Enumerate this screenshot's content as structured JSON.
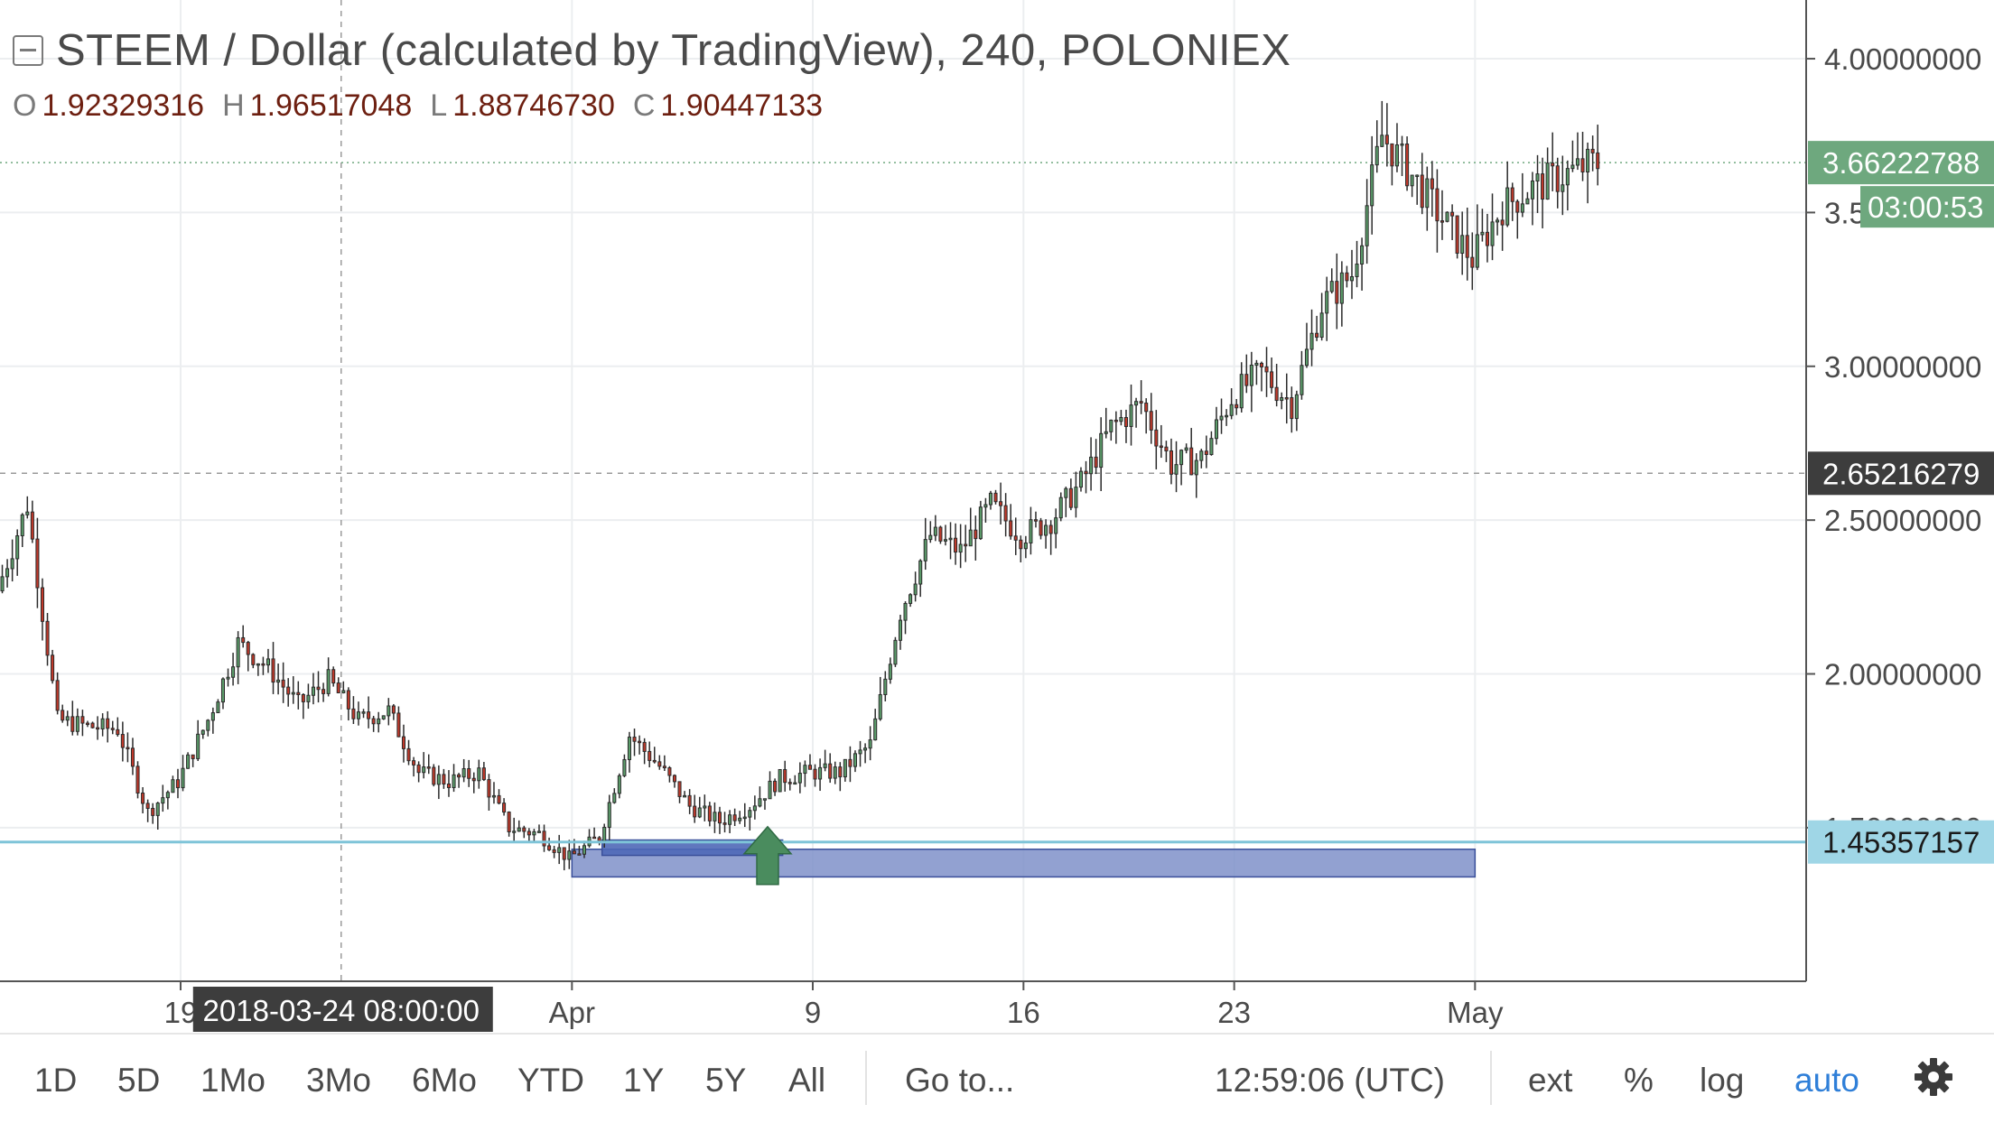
{
  "header": {
    "title": "STEEM / Dollar (calculated by TradingView), 240, POLONIEX",
    "ohlc": [
      {
        "key": "O",
        "value": "1.92329316"
      },
      {
        "key": "H",
        "value": "1.96517048"
      },
      {
        "key": "L",
        "value": "1.88746730"
      },
      {
        "key": "C",
        "value": "1.90447133"
      }
    ]
  },
  "colors": {
    "up": "#5b9c6a",
    "down": "#c0392b",
    "wick": "#2b2b2b",
    "hline": "#7ec4d8",
    "zone": "#7f91c9",
    "zone_dark": "#4f68b7",
    "arrow": "#4a8c5e",
    "last_price_label": "#6ea87e",
    "crosshair_label": "#3d3d3d"
  },
  "chart_data": {
    "type": "candlestick",
    "symbol": "STEEM / Dollar",
    "interval": "240",
    "exchange": "POLONIEX",
    "ylim": [
      1.08,
      4.05
    ],
    "y_ticks": [
      "4.00000000",
      "3.50000000",
      "3.00000000",
      "2.50000000",
      "2.00000000",
      "1.50000000"
    ],
    "y_tick_values": [
      4.0,
      3.5,
      3.0,
      2.5,
      2.0,
      1.5
    ],
    "x_ticks": [
      "19",
      "Apr",
      "9",
      "16",
      "23",
      "May"
    ],
    "x_tick_dates": [
      "2018-03-19",
      "2018-04-01",
      "2018-04-09",
      "2018-04-16",
      "2018-04-23",
      "2018-05-01"
    ],
    "x_start": "2018-03-13",
    "x_end": "2018-05-12",
    "path_points": [
      [
        "2018-03-13",
        2.27
      ],
      [
        "2018-03-14",
        2.55
      ],
      [
        "2018-03-15",
        1.85
      ],
      [
        "2018-03-16",
        1.83
      ],
      [
        "2018-03-17",
        1.82
      ],
      [
        "2018-03-18",
        1.55
      ],
      [
        "2018-03-19",
        1.65
      ],
      [
        "2018-03-20",
        1.85
      ],
      [
        "2018-03-21",
        2.1
      ],
      [
        "2018-03-22",
        2.02
      ],
      [
        "2018-03-23",
        1.9
      ],
      [
        "2018-03-24",
        1.98
      ],
      [
        "2018-03-25",
        1.85
      ],
      [
        "2018-03-26",
        1.88
      ],
      [
        "2018-03-27",
        1.68
      ],
      [
        "2018-03-28",
        1.65
      ],
      [
        "2018-03-29",
        1.68
      ],
      [
        "2018-03-30",
        1.5
      ],
      [
        "2018-03-31",
        1.48
      ],
      [
        "2018-04-01",
        1.4
      ],
      [
        "2018-04-02",
        1.47
      ],
      [
        "2018-04-03",
        1.8
      ],
      [
        "2018-04-04",
        1.7
      ],
      [
        "2018-04-05",
        1.57
      ],
      [
        "2018-04-06",
        1.52
      ],
      [
        "2018-04-07",
        1.57
      ],
      [
        "2018-04-08",
        1.66
      ],
      [
        "2018-04-09",
        1.68
      ],
      [
        "2018-04-10",
        1.68
      ],
      [
        "2018-04-11",
        1.77
      ],
      [
        "2018-04-12",
        2.2
      ],
      [
        "2018-04-13",
        2.45
      ],
      [
        "2018-04-14",
        2.4
      ],
      [
        "2018-04-15",
        2.55
      ],
      [
        "2018-04-16",
        2.45
      ],
      [
        "2018-04-17",
        2.5
      ],
      [
        "2018-04-18",
        2.62
      ],
      [
        "2018-04-19",
        2.8
      ],
      [
        "2018-04-20",
        2.88
      ],
      [
        "2018-04-21",
        2.68
      ],
      [
        "2018-04-22",
        2.7
      ],
      [
        "2018-04-23",
        2.9
      ],
      [
        "2018-04-24",
        2.98
      ],
      [
        "2018-04-25",
        2.88
      ],
      [
        "2018-04-26",
        3.2
      ],
      [
        "2018-04-27",
        3.3
      ],
      [
        "2018-04-28",
        3.75
      ],
      [
        "2018-04-29",
        3.62
      ],
      [
        "2018-04-30",
        3.48
      ],
      [
        "2018-05-01",
        3.35
      ],
      [
        "2018-05-02",
        3.52
      ],
      [
        "2018-05-03",
        3.58
      ],
      [
        "2018-05-04",
        3.62
      ],
      [
        "2018-05-05",
        3.66
      ]
    ],
    "horizontal_line": 1.45357157,
    "dashed_level": 2.65216279,
    "last_price": 3.66222788,
    "zones": [
      {
        "x0": "2018-04-01",
        "x1": "2018-05-01",
        "y0": 1.34,
        "y1": 1.43
      },
      {
        "x0": "2018-04-02",
        "x1": "2018-04-08",
        "y0": 1.41,
        "y1": 1.46
      }
    ],
    "arrow": {
      "x": "2018-04-07",
      "y": 1.38
    },
    "labels": {
      "hline_label": "1.45357157",
      "dashed_label": "2.65216279",
      "last_price_label": "3.66222788",
      "countdown": "03:00:53",
      "crosshair_date": "2018-03-24 08:00:00",
      "crosshair_x": "2018-03-24"
    }
  },
  "toolbar": {
    "ranges": [
      "1D",
      "5D",
      "1Mo",
      "3Mo",
      "6Mo",
      "YTD",
      "1Y",
      "5Y",
      "All"
    ],
    "goto": "Go to...",
    "clock": "12:59:06 (UTC)",
    "ext": "ext",
    "percent": "%",
    "log": "log",
    "auto": "auto"
  }
}
